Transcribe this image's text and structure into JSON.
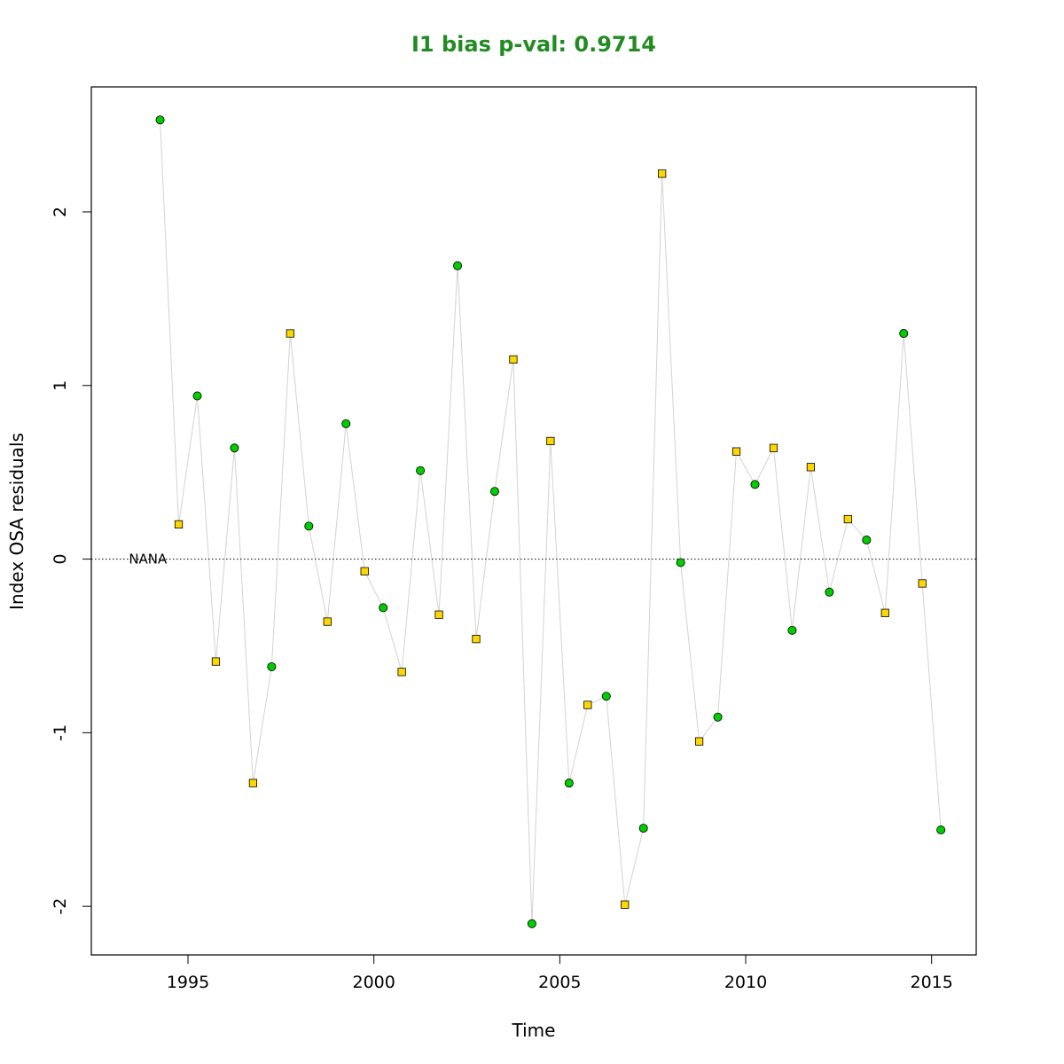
{
  "chart_data": {
    "type": "scatter",
    "title": "I1 bias p-val: 0.9714",
    "title_color": "#228b22",
    "xlabel": "Time",
    "ylabel": "Index OSA residuals",
    "xlim": [
      1992.4,
      2016.2
    ],
    "ylim": [
      -2.28,
      2.72
    ],
    "x_ticks": [
      1995,
      2000,
      2005,
      2010,
      2015
    ],
    "y_ticks": [
      -2,
      -1,
      0,
      1,
      2
    ],
    "reference_line": {
      "y": 0,
      "style": "dotted"
    },
    "annotation": {
      "text": "NANA",
      "x": 1993.6,
      "y": 0
    },
    "connector_color": "#d3d3d3",
    "marker_colors": {
      "circle": "#00cc00",
      "square": "#ffd700"
    },
    "series": [
      {
        "marker": "circle",
        "x": [
          1994.25,
          1995.25,
          1996.25,
          1997.25,
          1998.25,
          1999.25,
          2000.25,
          2001.25,
          2002.25,
          2003.25,
          2004.25,
          2005.25,
          2006.25,
          2007.25,
          2008.25,
          2009.25,
          2010.25,
          2011.25,
          2012.25,
          2013.25,
          2014.25,
          2015.25
        ],
        "y": [
          2.53,
          0.94,
          0.64,
          -0.62,
          0.19,
          0.78,
          -0.28,
          0.51,
          1.69,
          0.39,
          -2.1,
          -1.29,
          -0.79,
          -1.55,
          -0.02,
          -0.91,
          0.43,
          -0.41,
          -0.19,
          0.11,
          1.3,
          -1.56
        ]
      },
      {
        "marker": "square",
        "x": [
          1994.75,
          1995.75,
          1996.75,
          1997.75,
          1998.75,
          1999.75,
          2000.75,
          2001.75,
          2002.75,
          2003.75,
          2004.75,
          2005.75,
          2006.75,
          2007.75,
          2008.75,
          2009.75,
          2010.75,
          2011.75,
          2012.75,
          2013.75,
          2014.75
        ],
        "y": [
          0.2,
          -0.59,
          -1.29,
          1.3,
          -0.36,
          -0.07,
          -0.65,
          -0.32,
          -0.46,
          1.15,
          0.68,
          -0.84,
          -1.99,
          2.22,
          -1.05,
          0.62,
          0.64,
          0.53,
          0.23,
          -0.31,
          -0.14
        ]
      }
    ]
  }
}
